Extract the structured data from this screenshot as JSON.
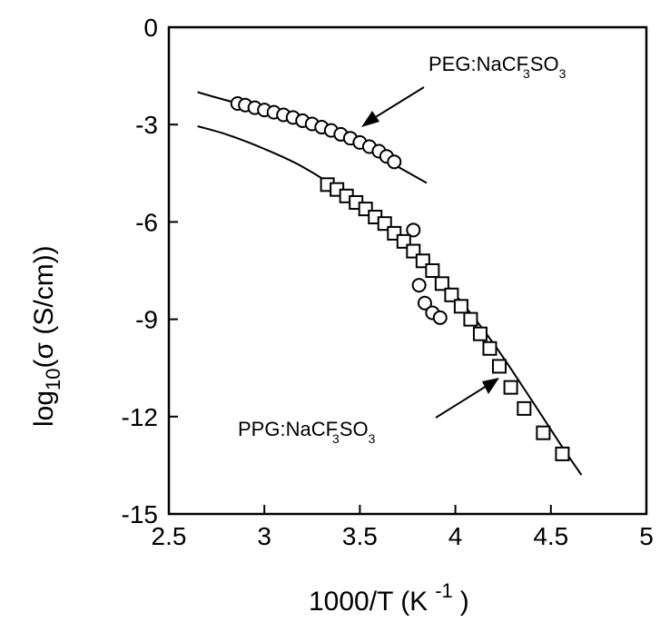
{
  "chart_data": {
    "type": "scatter",
    "xlabel": "1000/T (K",
    "xlabel_exponent": "-1",
    "xlabel_close": ")",
    "ylabel": "log",
    "ylabel_sub": "10",
    "ylabel_rest": "(σ (S/cm))",
    "xlim": [
      2.5,
      5
    ],
    "ylim": [
      -15,
      0
    ],
    "xticks": [
      "2.5",
      "3",
      "3.5",
      "4",
      "4.5",
      "5"
    ],
    "yticks": [
      "0",
      "-3",
      "-6",
      "-9",
      "-12",
      "-15"
    ],
    "grid": false,
    "annotations": [
      {
        "name": "peg-label",
        "text_main": "PEG:NaCF",
        "text_sub1": "3",
        "text_mid": "SO",
        "text_sub2": "3"
      },
      {
        "name": "ppg-label",
        "text_main": "PPG:NaCF",
        "text_sub1": "3",
        "text_mid": "SO",
        "text_sub2": "3"
      }
    ],
    "series": [
      {
        "marker": "circle",
        "x": [
          2.86,
          2.9,
          2.95,
          3.0,
          3.05,
          3.1,
          3.15,
          3.2,
          3.25,
          3.3,
          3.35,
          3.4,
          3.45,
          3.5,
          3.55,
          3.6,
          3.64,
          3.68
        ],
        "y": [
          -2.35,
          -2.4,
          -2.48,
          -2.55,
          -2.62,
          -2.7,
          -2.78,
          -2.88,
          -2.98,
          -3.08,
          -3.18,
          -3.3,
          -3.42,
          -3.55,
          -3.68,
          -3.82,
          -3.98,
          -4.15
        ]
      },
      {
        "marker": "circle",
        "x": [
          3.78,
          3.81,
          3.84,
          3.88,
          3.92
        ],
        "y": [
          -6.25,
          -7.95,
          -8.5,
          -8.8,
          -8.95
        ]
      },
      {
        "marker": "square",
        "x": [
          3.33,
          3.38,
          3.43,
          3.48,
          3.53,
          3.58,
          3.63,
          3.68,
          3.73,
          3.78,
          3.83,
          3.88,
          3.93,
          3.98,
          4.03,
          4.08,
          4.13,
          4.18,
          4.23,
          4.29,
          4.36,
          4.46,
          4.56
        ],
        "y": [
          -4.85,
          -5.0,
          -5.2,
          -5.4,
          -5.6,
          -5.85,
          -6.05,
          -6.35,
          -6.6,
          -6.9,
          -7.2,
          -7.5,
          -7.9,
          -8.25,
          -8.6,
          -9.0,
          -9.45,
          -9.9,
          -10.45,
          -11.1,
          -11.75,
          -12.5,
          -13.15
        ]
      }
    ],
    "fit_curves": [
      {
        "x": [
          2.65,
          2.8,
          3.0,
          3.2,
          3.4,
          3.6,
          3.7,
          3.85
        ],
        "y": [
          -2.0,
          -2.25,
          -2.55,
          -2.9,
          -3.4,
          -3.95,
          -4.3,
          -4.8
        ]
      },
      {
        "x": [
          2.65,
          2.8,
          3.0,
          3.2,
          3.4,
          3.6,
          3.8,
          4.0,
          4.2,
          4.4,
          4.55,
          4.66
        ],
        "y": [
          -3.05,
          -3.3,
          -3.75,
          -4.3,
          -5.05,
          -6.0,
          -7.05,
          -8.25,
          -9.75,
          -11.5,
          -12.85,
          -13.8
        ]
      }
    ]
  }
}
